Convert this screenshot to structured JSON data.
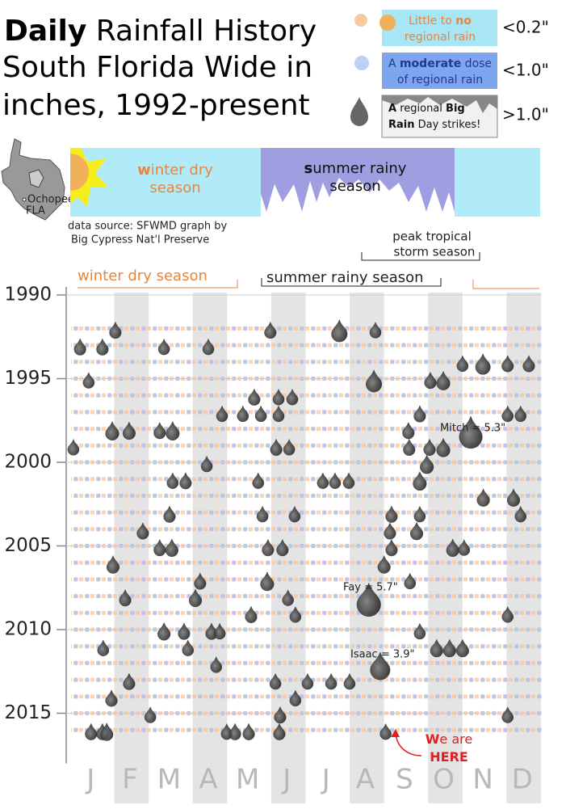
{
  "header": {
    "title_bold": "Daily",
    "title_rest": "Rainfall History",
    "title_line2": "South Florida Wide in",
    "title_line3": "inches, 1992-present"
  },
  "legend": [
    {
      "label": "<0.2\"",
      "lines": [
        [
          {
            "text": "Little to "
          },
          {
            "text": "no",
            "bold": true
          }
        ],
        [
          {
            "text": "regional rain"
          }
        ]
      ]
    },
    {
      "label": "<1.0\"",
      "lines": [
        [
          {
            "text": "A "
          },
          {
            "text": "moderate",
            "bold": true
          },
          {
            "text": " dose"
          }
        ],
        [
          {
            "text": "of regional rain"
          }
        ]
      ]
    },
    {
      "label": ">1.0\"",
      "lines": [
        [
          {
            "text": "A",
            "bold": true
          },
          {
            "text": " regional "
          },
          {
            "text": "Big",
            "bold": true
          }
        ],
        [
          {
            "text": "Rain",
            "bold": true
          },
          {
            "text": " Day strikes!"
          }
        ]
      ]
    }
  ],
  "map_label": [
    "Ochopee,",
    "FLA"
  ],
  "seasons_panel": {
    "winter": [
      [
        {
          "text": "w",
          "bold": true
        },
        {
          "text": "inter dry"
        }
      ],
      [
        {
          "text": "season"
        }
      ]
    ],
    "summer": [
      [
        {
          "text": "s",
          "bold": true
        },
        {
          "text": "ummer rainy"
        }
      ],
      [
        {
          "text": "season"
        }
      ]
    ]
  },
  "source": [
    "data source: SFWMD  graph by",
    "Big Cypress Nat'l Preserve"
  ],
  "chart_data": {
    "type": "scatter",
    "season_labels": {
      "winter": "winter dry season",
      "summer": "summer rainy season",
      "peak": [
        "peak tropical",
        "storm season"
      ]
    },
    "categories": [
      "J",
      "F",
      "M",
      "A",
      "M",
      "J",
      "J",
      "A",
      "S",
      "O",
      "N",
      "D"
    ],
    "xlim": [
      0,
      12
    ],
    "ylim": [
      1990,
      2018
    ],
    "yticks": [
      1990,
      1995,
      2000,
      2005,
      2010,
      2015
    ],
    "series": [
      {
        "color": "#2a2a2a",
        "x": [
          1.13,
          5.08,
          6.84,
          7.76,
          0.23,
          0.8,
          2.37,
          3.5,
          9.98,
          10.5,
          11.13,
          11.67,
          0.45,
          7.72,
          9.16,
          9.49,
          4.67,
          5.29,
          5.64,
          3.85,
          4.38,
          4.84,
          5.29,
          8.89,
          11.13,
          11.46,
          1.05,
          1.48,
          2.26,
          2.59,
          10.19,
          8.6,
          0.06,
          5.23,
          5.56,
          8.62,
          9.14,
          9.49,
          3.46,
          9.07,
          2.59,
          2.92,
          4.77,
          6.42,
          6.73,
          7.08,
          8.89,
          10.51,
          11.28,
          2.51,
          4.88,
          5.7,
          8.17,
          8.89,
          11.46,
          1.83,
          8.13,
          8.81,
          2.26,
          2.57,
          5.02,
          5.39,
          8.17,
          9.73,
          10.02,
          1.07,
          7.98,
          3.29,
          5.0,
          8.64,
          1.38,
          3.17,
          5.53,
          7.59,
          4.59,
          5.72,
          11.13,
          2.37,
          2.88,
          3.58,
          3.79,
          8.89,
          0.82,
          2.98,
          9.32,
          9.65,
          9.98,
          3.7,
          7.88,
          1.48,
          5.21,
          6.03,
          6.63,
          7.1,
          1.03,
          5.72,
          2.02,
          5.33,
          11.13,
          0.51,
          0.8,
          0.91,
          3.97,
          4.18,
          4.53,
          5.31,
          8.02
        ],
        "values": [
          1992,
          1992,
          1992,
          1992,
          1993,
          1993,
          1993,
          1993,
          1994,
          1994,
          1994,
          1994,
          1995,
          1995,
          1995,
          1995,
          1996,
          1996,
          1996,
          1997,
          1997,
          1997,
          1997,
          1997,
          1997,
          1997,
          1998,
          1998,
          1998,
          1998,
          1998,
          1998,
          1999,
          1999,
          1999,
          1999,
          1999,
          1999,
          2000,
          2000,
          2001,
          2001,
          2001,
          2001,
          2001,
          2001,
          2001,
          2002,
          2002,
          2003,
          2003,
          2003,
          2003,
          2003,
          2003,
          2004,
          2004,
          2004,
          2005,
          2005,
          2005,
          2005,
          2005,
          2005,
          2005,
          2006,
          2006,
          2007,
          2007,
          2007,
          2008,
          2008,
          2008,
          2008,
          2009,
          2009,
          2009,
          2010,
          2010,
          2010,
          2010,
          2010,
          2011,
          2011,
          2011,
          2011,
          2011,
          2012,
          2012,
          2013,
          2013,
          2013,
          2013,
          2013,
          2014,
          2014,
          2015,
          2015,
          2015,
          2016,
          2016,
          2016,
          2016,
          2016,
          2016,
          2016,
          2016
        ],
        "sizes": [
          1.4,
          1.4,
          2.5,
          1.3,
          1.4,
          1.4,
          1.3,
          1.3,
          1.3,
          2.2,
          1.4,
          1.4,
          1.3,
          2.5,
          1.4,
          1.8,
          1.4,
          1.3,
          1.3,
          1.3,
          1.3,
          1.3,
          1.3,
          1.4,
          1.3,
          1.3,
          1.8,
          1.6,
          1.4,
          1.8,
          5.3,
          1.4,
          1.3,
          1.4,
          1.3,
          1.4,
          1.4,
          1.8,
          1.3,
          1.8,
          1.3,
          1.4,
          1.3,
          1.3,
          1.3,
          1.3,
          1.8,
          1.6,
          1.6,
          1.4,
          1.3,
          1.3,
          1.4,
          1.3,
          1.3,
          1.4,
          1.4,
          1.6,
          1.4,
          1.6,
          1.4,
          1.4,
          1.4,
          1.6,
          1.3,
          1.6,
          1.6,
          1.4,
          1.8,
          1.3,
          1.4,
          1.6,
          1.3,
          5.7,
          1.4,
          1.3,
          1.3,
          1.6,
          1.4,
          1.4,
          1.3,
          1.3,
          1.3,
          1.3,
          1.6,
          1.6,
          1.6,
          1.3,
          3.9,
          1.4,
          1.3,
          1.3,
          1.3,
          1.3,
          1.4,
          1.3,
          1.3,
          1.4,
          1.3,
          1.4,
          1.4,
          1.6,
          1.3,
          1.4,
          1.4,
          1.4,
          1.3
        ]
      }
    ],
    "annotations": [
      "Mitch = 5.3\"",
      "Fay = 5.7\"",
      "Isaac = 3.9\""
    ],
    "here_label": [
      [
        {
          "text": "W",
          "bold": true
        },
        {
          "text": "e are"
        }
      ],
      [
        {
          "text": "HERE",
          "bold": true
        }
      ]
    ]
  }
}
